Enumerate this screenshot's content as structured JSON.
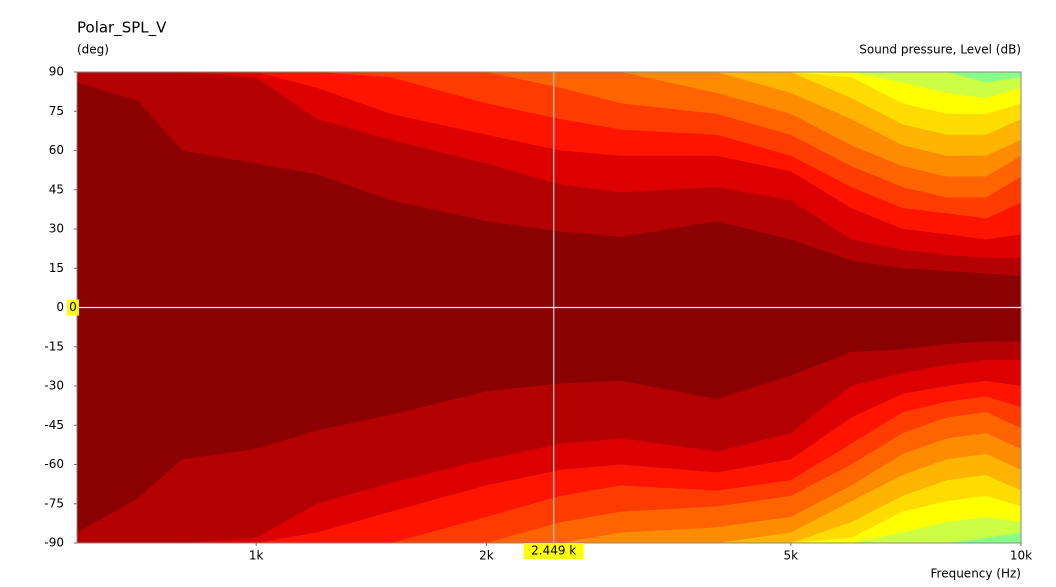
{
  "chart_data": {
    "type": "contour",
    "title": "Polar_SPL_V",
    "ylabel": "(deg)",
    "colorbar_label": "Sound pressure, Level  (dB)",
    "xlabel": "Frequency  (Hz)",
    "xscale": "log",
    "xlim": [
      583,
      10000
    ],
    "ylim": [
      -90,
      90
    ],
    "xticks": [
      {
        "value": 1000,
        "label": "1k"
      },
      {
        "value": 2000,
        "label": "2k"
      },
      {
        "value": 5000,
        "label": "5k"
      },
      {
        "value": 10000,
        "label": "10k"
      }
    ],
    "yticks": [
      90,
      75,
      60,
      45,
      30,
      15,
      0,
      -15,
      -30,
      -45,
      -60,
      -75,
      -90
    ],
    "cursor": {
      "x": {
        "value": 2449,
        "label": "2.449 k"
      },
      "y": 0
    },
    "background": "#88ff88",
    "x": [
      583,
      700,
      800,
      1000,
      1200,
      1500,
      2000,
      2500,
      3000,
      4000,
      5000,
      6000,
      7000,
      8000,
      9000,
      10000
    ],
    "contours": [
      {
        "color": "#ccff44",
        "upper": [
          90,
          90,
          90,
          90,
          90,
          90,
          90,
          90,
          90,
          90,
          90,
          90,
          90,
          90,
          86,
          88
        ],
        "lower": [
          -90,
          -90,
          -90,
          -90,
          -90,
          -90,
          -90,
          -90,
          -90,
          -90,
          -90,
          -90,
          -90,
          -90,
          -88,
          -86
        ]
      },
      {
        "color": "#ffff00",
        "upper": [
          90,
          90,
          90,
          90,
          90,
          90,
          90,
          90,
          90,
          90,
          90,
          90,
          86,
          82,
          80,
          84
        ],
        "lower": [
          -90,
          -90,
          -90,
          -90,
          -90,
          -90,
          -90,
          -90,
          -90,
          -90,
          -90,
          -90,
          -86,
          -82,
          -80,
          -82
        ]
      },
      {
        "color": "#ffdc00",
        "upper": [
          90,
          90,
          90,
          90,
          90,
          90,
          90,
          90,
          90,
          90,
          90,
          88,
          78,
          74,
          74,
          78
        ],
        "lower": [
          -90,
          -90,
          -90,
          -90,
          -90,
          -90,
          -90,
          -90,
          -90,
          -90,
          -90,
          -88,
          -78,
          -74,
          -72,
          -76
        ]
      },
      {
        "color": "#ffb400",
        "upper": [
          90,
          90,
          90,
          90,
          90,
          90,
          90,
          90,
          90,
          90,
          90,
          80,
          70,
          66,
          66,
          72
        ],
        "lower": [
          -90,
          -90,
          -90,
          -90,
          -90,
          -90,
          -90,
          -90,
          -90,
          -90,
          -90,
          -82,
          -72,
          -66,
          -64,
          -70
        ]
      },
      {
        "color": "#ff8c00",
        "upper": [
          90,
          90,
          90,
          90,
          90,
          90,
          90,
          90,
          90,
          90,
          82,
          72,
          62,
          58,
          58,
          64
        ],
        "lower": [
          -90,
          -90,
          -90,
          -90,
          -90,
          -90,
          -90,
          -90,
          -90,
          -90,
          -86,
          -74,
          -64,
          -58,
          -56,
          -62
        ]
      },
      {
        "color": "#ff6400",
        "upper": [
          90,
          90,
          90,
          90,
          90,
          90,
          90,
          90,
          90,
          82,
          74,
          62,
          54,
          50,
          50,
          58
        ],
        "lower": [
          -90,
          -90,
          -90,
          -90,
          -90,
          -90,
          -90,
          -90,
          -86,
          -84,
          -80,
          -68,
          -56,
          -50,
          -48,
          -54
        ]
      },
      {
        "color": "#ff3c00",
        "upper": [
          90,
          90,
          90,
          90,
          90,
          90,
          90,
          84,
          78,
          74,
          66,
          54,
          46,
          42,
          42,
          50
        ],
        "lower": [
          -90,
          -90,
          -90,
          -90,
          -90,
          -90,
          -90,
          -82,
          -78,
          -76,
          -72,
          -60,
          -48,
          -42,
          -40,
          -46
        ]
      },
      {
        "color": "#ff1400",
        "upper": [
          90,
          90,
          90,
          90,
          90,
          88,
          78,
          72,
          68,
          66,
          58,
          46,
          38,
          36,
          34,
          40
        ],
        "lower": [
          -90,
          -90,
          -90,
          -90,
          -90,
          -90,
          -80,
          -72,
          -68,
          -70,
          -66,
          -52,
          -40,
          -36,
          -34,
          -38
        ]
      },
      {
        "color": "#dc0000",
        "upper": [
          90,
          90,
          90,
          90,
          84,
          74,
          66,
          60,
          58,
          58,
          52,
          38,
          30,
          28,
          26,
          28
        ],
        "lower": [
          -90,
          -90,
          -90,
          -90,
          -86,
          -78,
          -68,
          -62,
          -60,
          -63,
          -58,
          -42,
          -33,
          -30,
          -28,
          -30
        ]
      },
      {
        "color": "#b40000",
        "upper": [
          90,
          90,
          90,
          88,
          72,
          64,
          55,
          47,
          44,
          46,
          41,
          26,
          22,
          20,
          19,
          19
        ],
        "lower": [
          -90,
          -90,
          -90,
          -88,
          -75,
          -67,
          -58,
          -52,
          -50,
          -55,
          -48,
          -30,
          -25,
          -22,
          -20,
          -20
        ]
      },
      {
        "color": "#8b0000",
        "upper": [
          86,
          79,
          60,
          55,
          51,
          41,
          33,
          29,
          27,
          33,
          26,
          18,
          15,
          14,
          13,
          12
        ],
        "lower": [
          -86,
          -73,
          -58,
          -54,
          -47,
          -41,
          -32,
          -29,
          -28,
          -35,
          -26,
          -17,
          -16,
          -14,
          -13,
          -13
        ]
      }
    ]
  }
}
